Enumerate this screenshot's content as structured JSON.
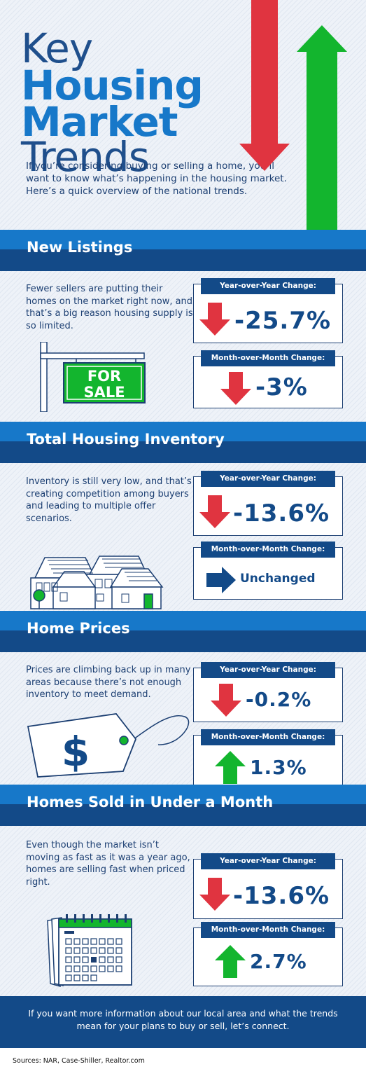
{
  "header": {
    "title_line1": "Key",
    "title_line2": "Housing",
    "title_line3": "Market",
    "title_line4": "Trends",
    "intro": "If you’re considering buying or selling a home, you’ll want to know what’s happening in the housing market. Here’s a quick overview of the national trends."
  },
  "colors": {
    "navy": "#134a88",
    "blue": "#1778c9",
    "red": "#e03440",
    "green": "#13b52e"
  },
  "sections": [
    {
      "title": "New Listings",
      "description": "Fewer sellers are putting their homes on the market right now, and that’s a big reason housing supply is so limited.",
      "illustration": "for-sale-sign",
      "sign_line1": "FOR",
      "sign_line2": "SALE",
      "yoy": {
        "label": "Year-over-Year Change:",
        "value": "-25.7%",
        "direction": "down"
      },
      "mom": {
        "label": "Month-over-Month Change:",
        "value": "-3%",
        "direction": "down"
      }
    },
    {
      "title": "Total Housing Inventory",
      "description": "Inventory is still very low, and that’s creating competition among buyers and leading to multiple offer scenarios.",
      "illustration": "houses",
      "yoy": {
        "label": "Year-over-Year Change:",
        "value": "-13.6%",
        "direction": "down"
      },
      "mom": {
        "label": "Month-over-Month Change:",
        "value": "Unchanged",
        "direction": "right"
      }
    },
    {
      "title": "Home Prices",
      "description": "Prices are climbing back up in many areas because there’s not enough inventory to meet demand.",
      "illustration": "price-tag",
      "tag_symbol": "$",
      "yoy": {
        "label": "Year-over-Year Change:",
        "value": "-0.2%",
        "direction": "down"
      },
      "mom": {
        "label": "Month-over-Month Change:",
        "value": "1.3%",
        "direction": "up"
      }
    },
    {
      "title": "Homes Sold in Under a Month",
      "description": "Even though the market isn’t moving as fast as it was a year ago, homes are selling fast when priced right.",
      "illustration": "calendar",
      "yoy": {
        "label": "Year-over-Year Change:",
        "value": "-13.6%",
        "direction": "down"
      },
      "mom": {
        "label": "Month-over-Month Change:",
        "value": "2.7%",
        "direction": "up"
      }
    }
  ],
  "footer": {
    "cta": "If you want more information about our local area and what the trends mean for your plans to buy or sell, let’s connect.",
    "sources": "Sources: NAR, Case-Shiller, Realtor.com"
  }
}
